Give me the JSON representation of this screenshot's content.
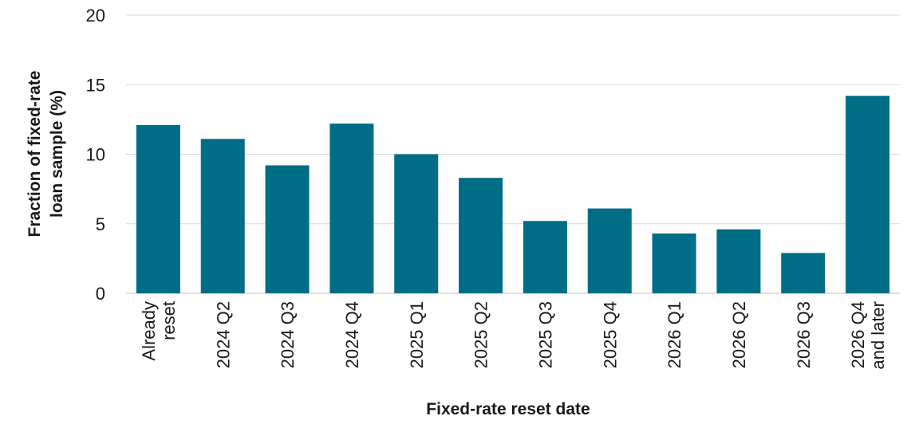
{
  "chart_data": {
    "type": "bar",
    "title": "",
    "xlabel": "Fixed-rate reset date",
    "ylabel": "Fraction of fixed-rate loan sample (%)",
    "ylabel_lines": [
      "Fraction of fixed-rate",
      "loan sample (%)"
    ],
    "categories": [
      "Already reset",
      "2024 Q2",
      "2024 Q3",
      "2024 Q4",
      "2025 Q1",
      "2025 Q2",
      "2025 Q3",
      "2025 Q4",
      "2026 Q1",
      "2026 Q2",
      "2026 Q3",
      "2026 Q4 and later"
    ],
    "category_lines": [
      [
        "Already",
        "reset"
      ],
      [
        "2024 Q2"
      ],
      [
        "2024 Q3"
      ],
      [
        "2024 Q4"
      ],
      [
        "2025 Q1"
      ],
      [
        "2025 Q2"
      ],
      [
        "2025 Q3"
      ],
      [
        "2025 Q4"
      ],
      [
        "2026 Q1"
      ],
      [
        "2026 Q2"
      ],
      [
        "2026 Q3"
      ],
      [
        "2026 Q4",
        "and later"
      ]
    ],
    "values": [
      12.1,
      11.1,
      9.2,
      12.2,
      10.0,
      8.3,
      5.2,
      6.1,
      4.3,
      4.6,
      2.9,
      14.2
    ],
    "ylim": [
      0,
      20
    ],
    "yticks": [
      0,
      5,
      10,
      15,
      20
    ],
    "grid": true,
    "bar_color": "#006d86",
    "grid_color": "#d9d9d9"
  }
}
